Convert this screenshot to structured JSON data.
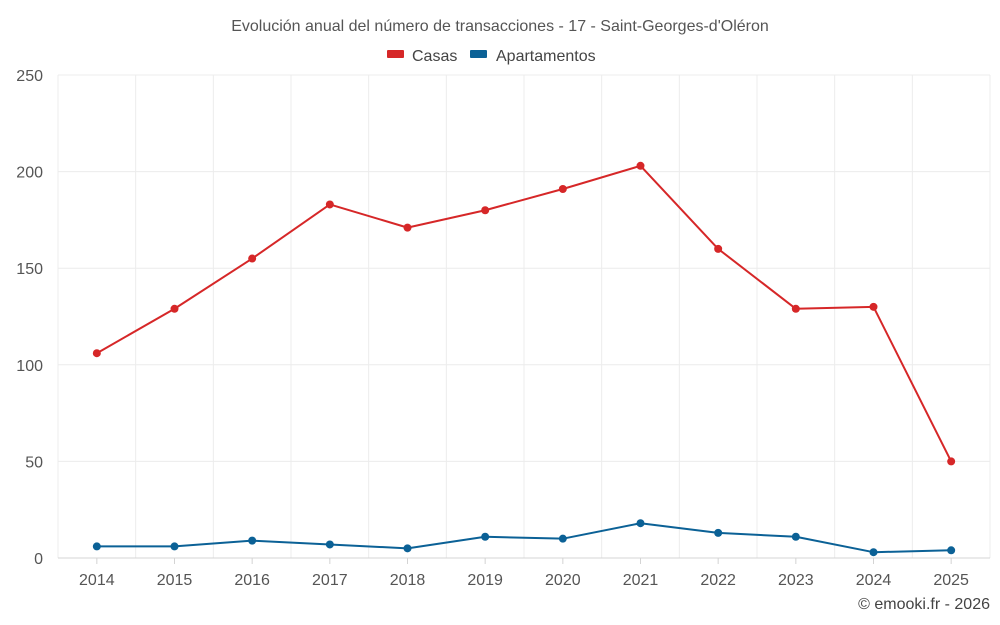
{
  "chart_data": {
    "type": "line",
    "title": "Evolución anual del número de transacciones - 17 - Saint-Georges-d'Oléron",
    "categories": [
      "2014",
      "2015",
      "2016",
      "2017",
      "2018",
      "2019",
      "2020",
      "2021",
      "2022",
      "2023",
      "2024",
      "2025"
    ],
    "series": [
      {
        "name": "Casas",
        "color": "#d62728",
        "values": [
          106,
          129,
          155,
          183,
          171,
          180,
          191,
          203,
          160,
          129,
          130,
          50
        ]
      },
      {
        "name": "Apartamentos",
        "color": "#0b6196",
        "values": [
          6,
          6,
          9,
          7,
          5,
          11,
          10,
          18,
          13,
          11,
          3,
          4
        ]
      }
    ],
    "ylim": [
      0,
      250
    ],
    "yticks": [
      0,
      50,
      100,
      150,
      200,
      250
    ],
    "xlabel": "",
    "ylabel": "",
    "grid": true,
    "legend_position": "top-center"
  },
  "credit": "© emooki.fr - 2026"
}
